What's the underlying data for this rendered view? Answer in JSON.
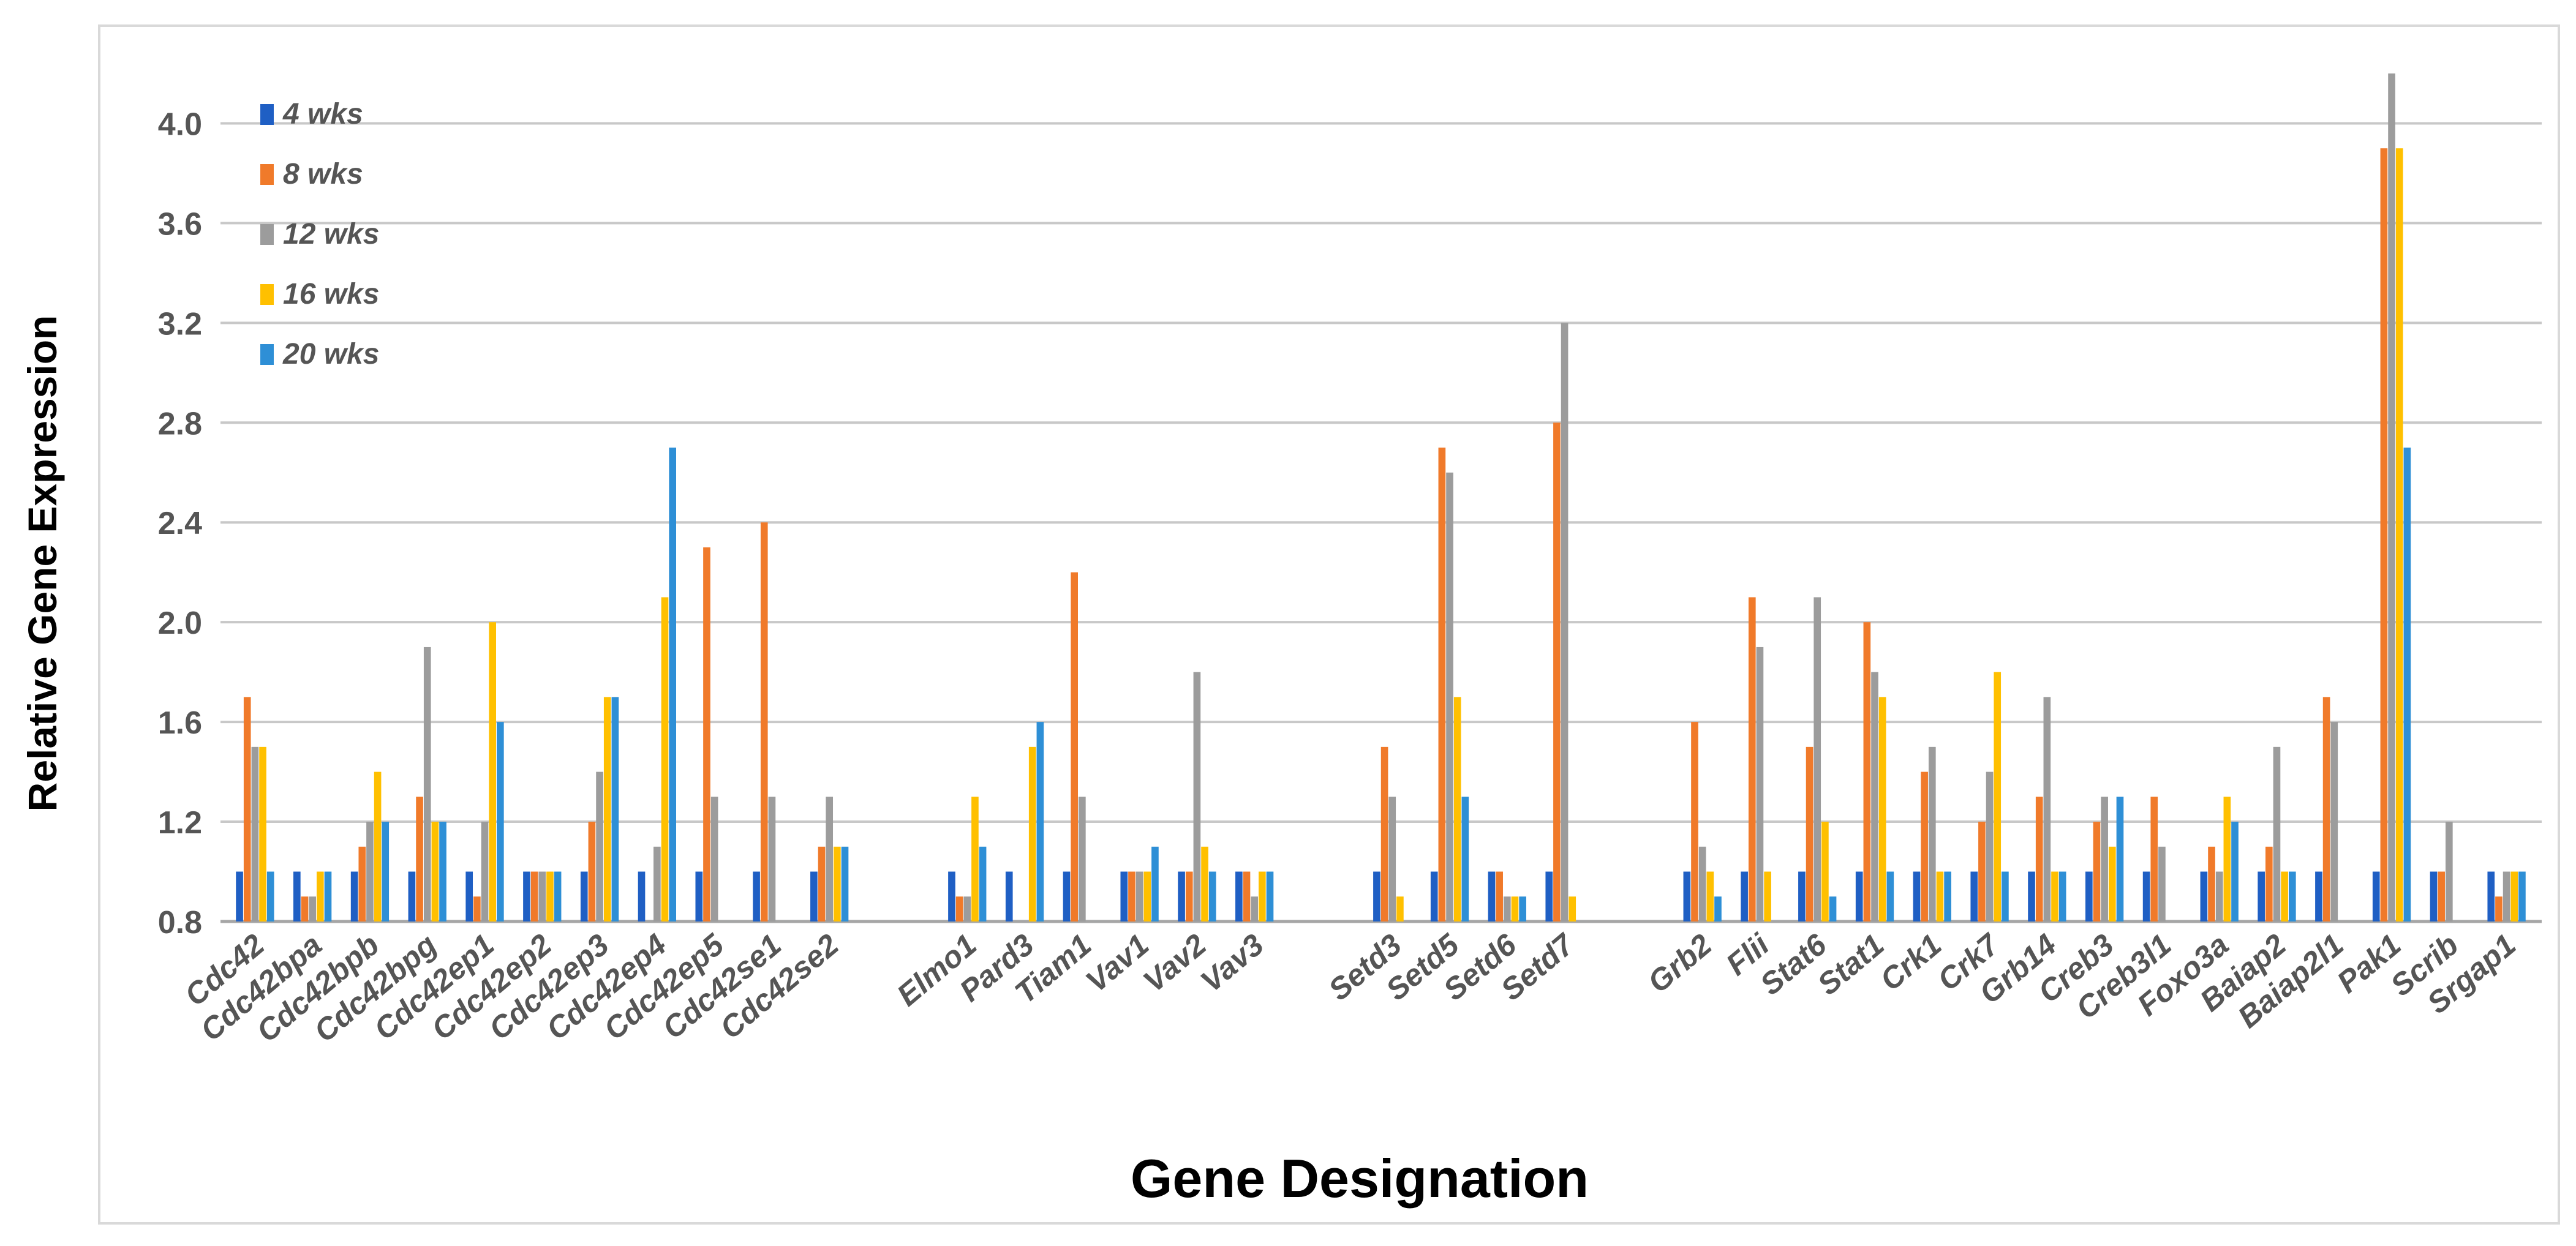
{
  "chart_data": {
    "type": "bar",
    "title": "",
    "xlabel": "Gene Designation",
    "ylabel": "Relative Gene Expression",
    "ylim": [
      0.8,
      4.2
    ],
    "yticks": [
      "0.8",
      "1.2",
      "1.6",
      "2.0",
      "2.4",
      "2.8",
      "3.2",
      "3.6",
      "4.0"
    ],
    "grid": true,
    "legend_position": "top-left",
    "categories": [
      "Cdc42",
      "Cdc42bpa",
      "Cdc42bpb",
      "Cdc42bpg",
      "Cdc42ep1",
      "Cdc42ep2",
      "Cdc42ep3",
      "Cdc42ep4",
      "Cdc42ep5",
      "Cdc42se1",
      "Cdc42se2",
      "Elmo1",
      "Pard3",
      "Tiam1",
      "Vav1",
      "Vav2",
      "Vav3",
      "Setd3",
      "Setd5",
      "Setd6",
      "Setd7",
      "Grb2",
      "Flii",
      "Stat6",
      "Stat1",
      "Crk1",
      "Crk7",
      "Grb14",
      "Creb3",
      "Creb3l1",
      "Foxo3a",
      "Baiap2",
      "Baiap2l1",
      "Pak1",
      "Scrib",
      "Srgap1"
    ],
    "groups": [
      11,
      6,
      4,
      15
    ],
    "series": [
      {
        "name": "4 wks",
        "color": "#1f5fc4",
        "values": [
          1.0,
          1.0,
          1.0,
          1.0,
          1.0,
          1.0,
          1.0,
          1.0,
          1.0,
          1.0,
          1.0,
          1.0,
          1.0,
          1.0,
          1.0,
          1.0,
          1.0,
          1.0,
          1.0,
          1.0,
          1.0,
          1.0,
          1.0,
          1.0,
          1.0,
          1.0,
          1.0,
          1.0,
          1.0,
          1.0,
          1.0,
          1.0,
          1.0,
          1.0,
          1.0,
          1.0
        ]
      },
      {
        "name": "8 wks",
        "color": "#f07a2a",
        "values": [
          1.7,
          0.9,
          1.1,
          1.3,
          0.9,
          1.0,
          1.2,
          0.8,
          2.3,
          2.4,
          1.1,
          0.9,
          0.8,
          2.2,
          1.0,
          1.0,
          1.0,
          1.5,
          2.7,
          1.0,
          2.8,
          1.6,
          2.1,
          1.5,
          2.0,
          1.4,
          1.2,
          1.3,
          1.2,
          1.3,
          1.1,
          1.1,
          1.7,
          3.9,
          1.0,
          0.9
        ]
      },
      {
        "name": "12 wks",
        "color": "#9c9c9c",
        "values": [
          1.5,
          0.9,
          1.2,
          1.9,
          1.2,
          1.0,
          1.4,
          1.1,
          1.3,
          1.3,
          1.3,
          0.9,
          0.8,
          1.3,
          1.0,
          1.8,
          0.9,
          1.3,
          2.6,
          0.9,
          3.2,
          1.1,
          1.9,
          2.1,
          1.8,
          1.5,
          1.4,
          1.7,
          1.3,
          1.1,
          1.0,
          1.5,
          1.6,
          4.2,
          1.2,
          1.0
        ]
      },
      {
        "name": "16 wks",
        "color": "#ffc000",
        "values": [
          1.5,
          1.0,
          1.4,
          1.2,
          2.0,
          1.0,
          1.7,
          2.1,
          0.8,
          0.8,
          1.1,
          1.3,
          1.5,
          0.8,
          1.0,
          1.1,
          1.0,
          0.9,
          1.7,
          0.9,
          0.9,
          1.0,
          1.0,
          1.2,
          1.7,
          1.0,
          1.8,
          1.0,
          1.1,
          0.8,
          1.3,
          1.0,
          0.8,
          3.9,
          0.8,
          1.0
        ]
      },
      {
        "name": "20 wks",
        "color": "#2e8fd6",
        "values": [
          1.0,
          1.0,
          1.2,
          1.2,
          1.6,
          1.0,
          1.7,
          2.7,
          0.8,
          0.8,
          1.1,
          1.1,
          1.6,
          0.8,
          1.1,
          1.0,
          1.0,
          0.8,
          1.3,
          0.9,
          0.8,
          0.9,
          0.8,
          0.9,
          1.0,
          1.0,
          1.0,
          1.0,
          1.3,
          0.8,
          1.2,
          1.0,
          0.8,
          2.7,
          0.8,
          1.0
        ]
      }
    ]
  }
}
